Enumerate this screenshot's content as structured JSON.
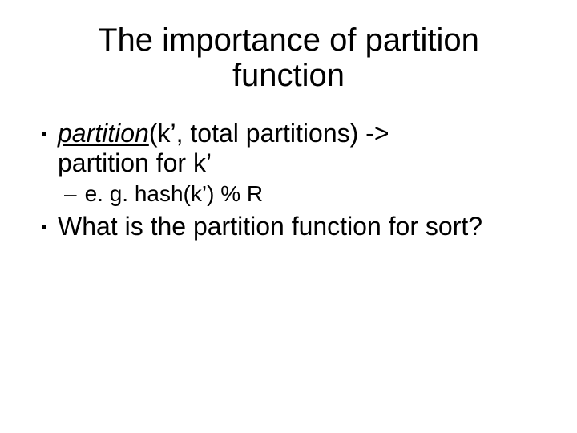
{
  "slide": {
    "title": "The importance of partition function",
    "title_fontsize": 40,
    "title_color": "#000000",
    "body_color": "#000000",
    "l1_fontsize": 32,
    "l2_fontsize": 28,
    "bullets": [
      {
        "level": 1,
        "emph_word": "partition",
        "rest_first": "(k’, total partitions) ->",
        "cont_line": "partition for k’"
      },
      {
        "level": 2,
        "dash": "–",
        "text": "e. g. hash(k’) % R"
      },
      {
        "level": 1,
        "plain": "What is the partition function for sort?"
      }
    ],
    "background_color": "#ffffff"
  }
}
